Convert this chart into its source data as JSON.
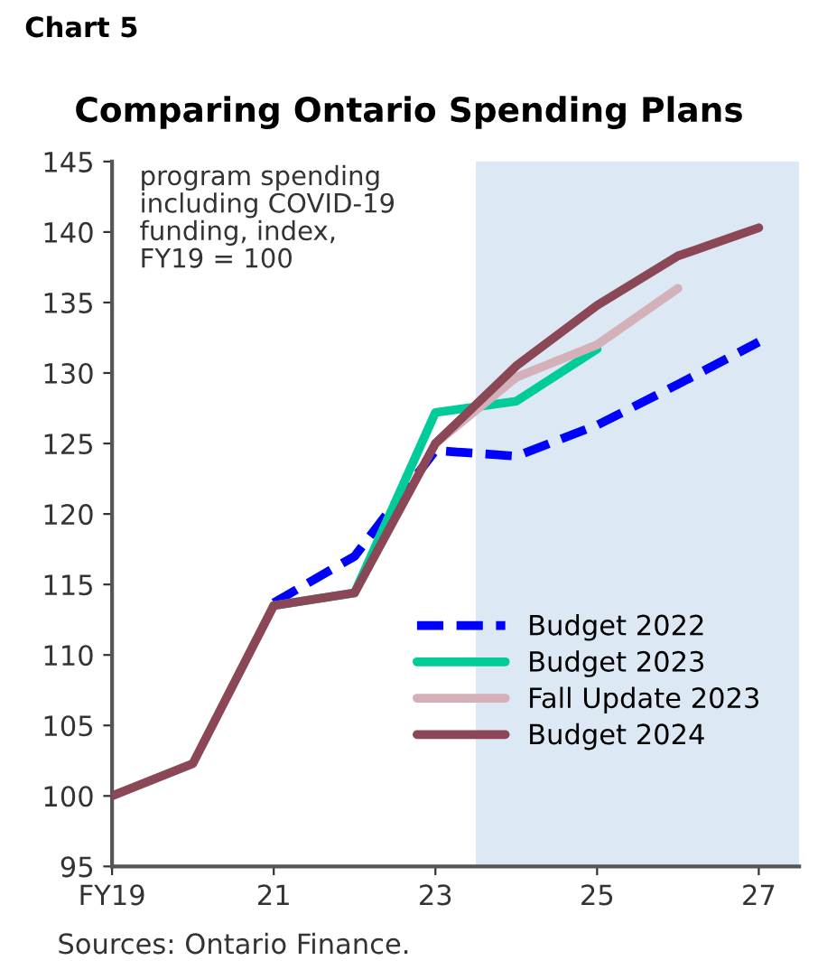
{
  "chart_data": {
    "type": "line",
    "title": "Comparing Ontario Spending Plans",
    "annotations": [
      "Chart 5",
      "program spending\nincluding COVID-19\nfunding, index,\nFY19 = 100",
      "Sources: Ontario Finance."
    ],
    "xlim": [
      2019,
      2027.5
    ],
    "xticks": [
      {
        "value": 2019,
        "label": "FY19"
      },
      {
        "value": 2021,
        "label": "21"
      },
      {
        "value": 2023,
        "label": "23"
      },
      {
        "value": 2025,
        "label": "25"
      },
      {
        "value": 2027,
        "label": "27"
      }
    ],
    "ylim": [
      95,
      145
    ],
    "yticks": [
      95,
      100,
      105,
      110,
      115,
      120,
      125,
      130,
      135,
      140,
      145
    ],
    "grid": false,
    "legend": "bottom right",
    "bands": [
      {
        "axis": "x",
        "from": 2023.5,
        "to": 2027.5,
        "color": "#dde8f5"
      }
    ],
    "series": [
      {
        "name": "Budget 2022",
        "color": "#0000ff",
        "line_style": "dashed",
        "x": [
          2021,
          2022,
          2023,
          2024,
          2025,
          2026,
          2027
        ],
        "values": [
          113.7,
          117,
          124.5,
          124.1,
          126.3,
          129.2,
          132.2
        ]
      },
      {
        "name": "Budget 2023",
        "color": "#00cc99",
        "line_style": "solid",
        "x": [
          2021,
          2022,
          2023,
          2024,
          2025
        ],
        "values": [
          113.5,
          114.4,
          127.2,
          128,
          131.7
        ]
      },
      {
        "name": "Fall Update 2023",
        "color": "#d4b0b8",
        "line_style": "solid",
        "x": [
          2023,
          2024,
          2025,
          2026
        ],
        "values": [
          125,
          129.7,
          132,
          136
        ]
      },
      {
        "name": "Budget 2024",
        "color": "#8b4756",
        "line_style": "solid",
        "x": [
          2019,
          2020,
          2021,
          2022,
          2023,
          2024,
          2025,
          2026,
          2027
        ],
        "values": [
          100,
          102.3,
          113.5,
          114.4,
          125,
          130.5,
          134.8,
          138.3,
          140.3
        ]
      }
    ]
  }
}
